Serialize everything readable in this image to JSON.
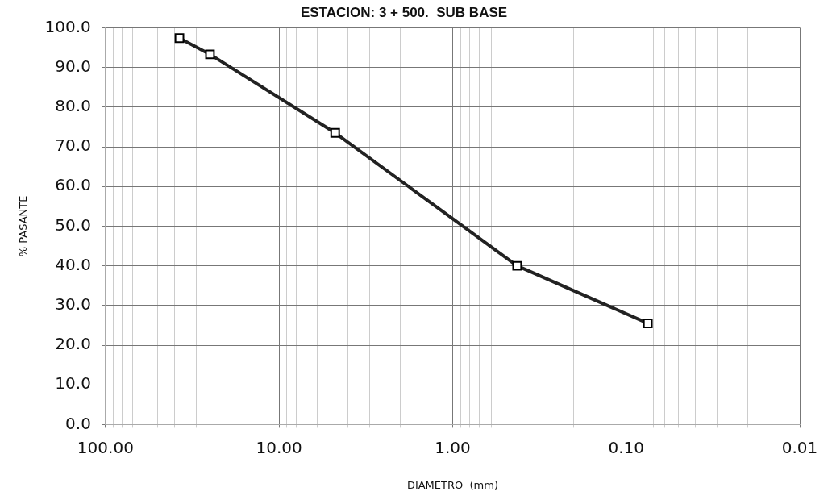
{
  "chart_data": {
    "type": "line",
    "title": "ESTACION: 3 + 500.  SUB BASE",
    "xlabel": "DIAMETRO  (mm)",
    "ylabel": "% PASANTE",
    "log": "x",
    "grid": true,
    "marker": "square",
    "line_style": "solid",
    "x": [
      37.5,
      25,
      4.75,
      0.425,
      0.075
    ],
    "series": [
      {
        "color": "#222222",
        "values": [
          97.4,
          93.3,
          73.5,
          40,
          25.5
        ]
      }
    ],
    "xlim": [
      100,
      0.01
    ],
    "xticks": [
      {
        "value": 100,
        "label": "100.00"
      },
      {
        "value": 90,
        "label": null
      },
      {
        "value": 80,
        "label": null
      },
      {
        "value": 70,
        "label": null
      },
      {
        "value": 60,
        "label": null
      },
      {
        "value": 50,
        "label": null
      },
      {
        "value": 40,
        "label": null
      },
      {
        "value": 30,
        "label": null
      },
      {
        "value": 20,
        "label": null
      },
      {
        "value": 10,
        "label": "10.00"
      },
      {
        "value": 9,
        "label": null
      },
      {
        "value": 8,
        "label": null
      },
      {
        "value": 7,
        "label": null
      },
      {
        "value": 6,
        "label": null
      },
      {
        "value": 5,
        "label": null
      },
      {
        "value": 4,
        "label": null
      },
      {
        "value": 3,
        "label": null
      },
      {
        "value": 2,
        "label": null
      },
      {
        "value": 1,
        "label": "1.00"
      },
      {
        "value": 0.9,
        "label": null
      },
      {
        "value": 0.8,
        "label": null
      },
      {
        "value": 0.7,
        "label": null
      },
      {
        "value": 0.6,
        "label": null
      },
      {
        "value": 0.5,
        "label": null
      },
      {
        "value": 0.4,
        "label": null
      },
      {
        "value": 0.3,
        "label": null
      },
      {
        "value": 0.2,
        "label": null
      },
      {
        "value": 0.1,
        "label": "0.10"
      },
      {
        "value": 0.09,
        "label": null
      },
      {
        "value": 0.08,
        "label": null
      },
      {
        "value": 0.07,
        "label": null
      },
      {
        "value": 0.06,
        "label": null
      },
      {
        "value": 0.05,
        "label": null
      },
      {
        "value": 0.04,
        "label": null
      },
      {
        "value": 0.03,
        "label": null
      },
      {
        "value": 0.02,
        "label": null
      },
      {
        "value": 0.01,
        "label": "0.01"
      }
    ],
    "ylim": [
      0,
      100
    ],
    "yticks": [
      {
        "value": 0,
        "label": "0.0"
      },
      {
        "value": 10,
        "label": "10.0"
      },
      {
        "value": 20,
        "label": "20.0"
      },
      {
        "value": 30,
        "label": "30.0"
      },
      {
        "value": 40,
        "label": "40.0"
      },
      {
        "value": 50,
        "label": "50.0"
      },
      {
        "value": 60,
        "label": "60.0"
      },
      {
        "value": 70,
        "label": "70.0"
      },
      {
        "value": 80,
        "label": "80.0"
      },
      {
        "value": 90,
        "label": "90.0"
      },
      {
        "value": 100,
        "label": "100.0"
      }
    ]
  }
}
